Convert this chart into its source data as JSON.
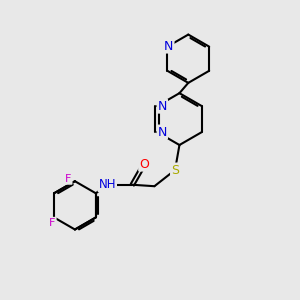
{
  "bg_color": "#e8e8e8",
  "bond_color": "#000000",
  "bond_width": 1.5,
  "atom_colors": {
    "N": "#0000dd",
    "O": "#ff0000",
    "S": "#aaaa00",
    "F": "#cc00cc",
    "C": "#000000",
    "H": "#555555"
  },
  "font_size": 8,
  "fig_size": [
    3.0,
    3.0
  ],
  "dpi": 100,
  "xlim": [
    0,
    10
  ],
  "ylim": [
    0,
    10
  ]
}
